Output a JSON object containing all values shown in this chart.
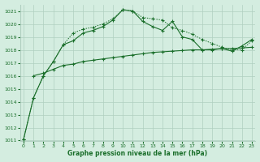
{
  "line1_x": [
    0,
    1,
    2,
    3,
    4,
    5,
    6,
    7,
    8,
    9,
    10,
    11,
    12,
    13,
    14,
    15,
    16,
    17,
    18,
    19,
    20,
    21,
    22,
    23
  ],
  "line1_y": [
    1011.1,
    1014.3,
    1016.0,
    1017.1,
    1018.4,
    1018.7,
    1019.3,
    1019.5,
    1019.8,
    1020.3,
    1021.1,
    1021.0,
    1020.2,
    1019.8,
    1019.5,
    1020.2,
    1019.0,
    1018.8,
    1018.0,
    1018.0,
    1018.1,
    1017.9,
    1018.3,
    1018.8
  ],
  "line2_x": [
    0,
    1,
    2,
    3,
    4,
    5,
    6,
    7,
    8,
    9,
    10,
    11,
    12,
    13,
    14,
    15,
    16,
    17,
    18,
    19,
    20,
    21,
    22,
    23
  ],
  "line2_y": [
    1011.1,
    1014.3,
    1016.0,
    1017.1,
    1018.4,
    1019.3,
    1019.6,
    1019.75,
    1020.0,
    1020.4,
    1021.1,
    1021.0,
    1020.5,
    1020.4,
    1020.3,
    1019.7,
    1019.5,
    1019.2,
    1018.8,
    1018.5,
    1018.2,
    1018.0,
    1018.0,
    1018.7
  ],
  "line3_x": [
    1,
    2,
    3,
    4,
    5,
    6,
    7,
    8,
    9,
    10,
    11,
    12,
    13,
    14,
    15,
    16,
    17,
    18,
    19,
    20,
    21,
    22,
    23
  ],
  "line3_y": [
    1016.0,
    1016.2,
    1016.5,
    1016.8,
    1016.9,
    1017.1,
    1017.2,
    1017.3,
    1017.4,
    1017.5,
    1017.6,
    1017.7,
    1017.8,
    1017.85,
    1017.9,
    1017.95,
    1018.0,
    1018.0,
    1018.05,
    1018.1,
    1018.1,
    1018.15,
    1018.2
  ],
  "bg_color": "#d4ede0",
  "grid_color": "#b0cfc0",
  "line_color": "#1a6e2a",
  "xlabel": "Graphe pression niveau de la mer (hPa)",
  "ylim": [
    1011,
    1021.5
  ],
  "xlim": [
    -0.3,
    23.3
  ],
  "yticks": [
    1011,
    1012,
    1013,
    1014,
    1015,
    1016,
    1017,
    1018,
    1019,
    1020,
    1021
  ],
  "xticks": [
    0,
    1,
    2,
    3,
    4,
    5,
    6,
    7,
    8,
    9,
    10,
    11,
    12,
    13,
    14,
    15,
    16,
    17,
    18,
    19,
    20,
    21,
    22,
    23
  ]
}
